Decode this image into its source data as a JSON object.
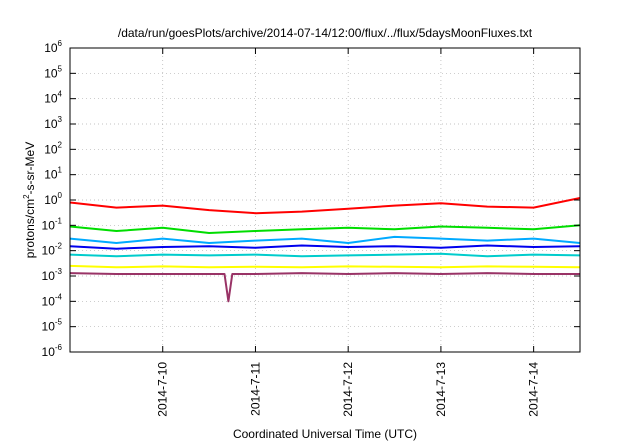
{
  "chart_data": {
    "type": "line",
    "title": "/data/run/goesPlots/archive/2014-07-14/12:00/flux/../flux/5daysMoonFluxes.txt",
    "xlabel": "Coordinated Universal Time (UTC)",
    "ylabel": "protons/cm²-s-sr-MeV",
    "ylabel_parts": {
      "pre": "protons/cm",
      "sup": "2",
      "post": "-s-sr-MeV"
    },
    "yscale": "log",
    "ylim": [
      1e-06,
      1000000.0
    ],
    "y_ticks": [
      {
        "value": 1e-06,
        "base": "10",
        "exp": "-6"
      },
      {
        "value": 1e-05,
        "base": "10",
        "exp": "-5"
      },
      {
        "value": 0.0001,
        "base": "10",
        "exp": "-4"
      },
      {
        "value": 0.001,
        "base": "10",
        "exp": "-3"
      },
      {
        "value": 0.01,
        "base": "10",
        "exp": "-2"
      },
      {
        "value": 0.1,
        "base": "10",
        "exp": "-1"
      },
      {
        "value": 1.0,
        "base": "10",
        "exp": "0"
      },
      {
        "value": 10.0,
        "base": "10",
        "exp": "1"
      },
      {
        "value": 100.0,
        "base": "10",
        "exp": "2"
      },
      {
        "value": 1000.0,
        "base": "10",
        "exp": "3"
      },
      {
        "value": 10000.0,
        "base": "10",
        "exp": "4"
      },
      {
        "value": 100000.0,
        "base": "10",
        "exp": "5"
      },
      {
        "value": 1000000.0,
        "base": "10",
        "exp": "6"
      }
    ],
    "xlim": [
      "2014-07-09T00:00",
      "2014-07-14T12:00"
    ],
    "x_ticks": [
      {
        "value": "2014-07-10T00:00",
        "label": "2014-7-10"
      },
      {
        "value": "2014-07-11T00:00",
        "label": "2014-7-11"
      },
      {
        "value": "2014-07-12T00:00",
        "label": "2014-7-12"
      },
      {
        "value": "2014-07-13T00:00",
        "label": "2014-7-13"
      },
      {
        "value": "2014-07-14T00:00",
        "label": "2014-7-14"
      }
    ],
    "grid": true,
    "series": [
      {
        "color": "#ff0000",
        "x": [
          "2014-07-09T00:00",
          "2014-07-09T12:00",
          "2014-07-10T00:00",
          "2014-07-10T12:00",
          "2014-07-11T00:00",
          "2014-07-11T12:00",
          "2014-07-12T00:00",
          "2014-07-12T12:00",
          "2014-07-13T00:00",
          "2014-07-13T12:00",
          "2014-07-14T00:00",
          "2014-07-14T12:00"
        ],
        "y": [
          0.8,
          0.5,
          0.6,
          0.4,
          0.3,
          0.35,
          0.45,
          0.6,
          0.75,
          0.55,
          0.5,
          1.2
        ]
      },
      {
        "color": "#00dd00",
        "x": [
          "2014-07-09T00:00",
          "2014-07-09T12:00",
          "2014-07-10T00:00",
          "2014-07-10T12:00",
          "2014-07-11T00:00",
          "2014-07-11T12:00",
          "2014-07-12T00:00",
          "2014-07-12T12:00",
          "2014-07-13T00:00",
          "2014-07-13T12:00",
          "2014-07-14T00:00",
          "2014-07-14T12:00"
        ],
        "y": [
          0.09,
          0.06,
          0.08,
          0.05,
          0.06,
          0.07,
          0.08,
          0.07,
          0.09,
          0.08,
          0.07,
          0.1
        ]
      },
      {
        "color": "#00aaff",
        "x": [
          "2014-07-09T00:00",
          "2014-07-09T12:00",
          "2014-07-10T00:00",
          "2014-07-10T12:00",
          "2014-07-11T00:00",
          "2014-07-11T12:00",
          "2014-07-12T00:00",
          "2014-07-12T12:00",
          "2014-07-13T00:00",
          "2014-07-13T12:00",
          "2014-07-14T00:00",
          "2014-07-14T12:00"
        ],
        "y": [
          0.03,
          0.02,
          0.03,
          0.02,
          0.025,
          0.03,
          0.02,
          0.035,
          0.03,
          0.025,
          0.03,
          0.02
        ]
      },
      {
        "color": "#0000ee",
        "x": [
          "2014-07-09T00:00",
          "2014-07-09T12:00",
          "2014-07-10T00:00",
          "2014-07-10T12:00",
          "2014-07-11T00:00",
          "2014-07-11T12:00",
          "2014-07-12T00:00",
          "2014-07-12T12:00",
          "2014-07-13T00:00",
          "2014-07-13T12:00",
          "2014-07-14T00:00",
          "2014-07-14T12:00"
        ],
        "y": [
          0.015,
          0.012,
          0.014,
          0.015,
          0.013,
          0.016,
          0.014,
          0.015,
          0.013,
          0.016,
          0.014,
          0.015
        ]
      },
      {
        "color": "#00cccc",
        "x": [
          "2014-07-09T00:00",
          "2014-07-09T12:00",
          "2014-07-10T00:00",
          "2014-07-10T12:00",
          "2014-07-11T00:00",
          "2014-07-11T12:00",
          "2014-07-12T00:00",
          "2014-07-12T12:00",
          "2014-07-13T00:00",
          "2014-07-13T12:00",
          "2014-07-14T00:00",
          "2014-07-14T12:00"
        ],
        "y": [
          0.007,
          0.006,
          0.007,
          0.0065,
          0.007,
          0.006,
          0.0065,
          0.007,
          0.0075,
          0.006,
          0.007,
          0.0065
        ]
      },
      {
        "color": "#ffff00",
        "x": [
          "2014-07-09T00:00",
          "2014-07-09T12:00",
          "2014-07-10T00:00",
          "2014-07-10T12:00",
          "2014-07-11T00:00",
          "2014-07-11T12:00",
          "2014-07-12T00:00",
          "2014-07-12T12:00",
          "2014-07-13T00:00",
          "2014-07-13T12:00",
          "2014-07-14T00:00",
          "2014-07-14T12:00"
        ],
        "y": [
          0.0025,
          0.0022,
          0.0024,
          0.0022,
          0.0023,
          0.0022,
          0.0024,
          0.0023,
          0.0022,
          0.0024,
          0.0023,
          0.0022
        ]
      },
      {
        "color": "#993366",
        "x": [
          "2014-07-09T00:00",
          "2014-07-09T12:00",
          "2014-07-10T00:00",
          "2014-07-10T12:00",
          "2014-07-10T16:00",
          "2014-07-10T17:00",
          "2014-07-10T18:00",
          "2014-07-11T00:00",
          "2014-07-11T12:00",
          "2014-07-12T00:00",
          "2014-07-12T12:00",
          "2014-07-13T00:00",
          "2014-07-13T12:00",
          "2014-07-14T00:00",
          "2014-07-14T12:00"
        ],
        "y": [
          0.0013,
          0.0012,
          0.0012,
          0.0012,
          0.0012,
          0.0001,
          0.0012,
          0.0012,
          0.0013,
          0.0012,
          0.0013,
          0.0012,
          0.0013,
          0.0012,
          0.0012
        ]
      }
    ]
  }
}
